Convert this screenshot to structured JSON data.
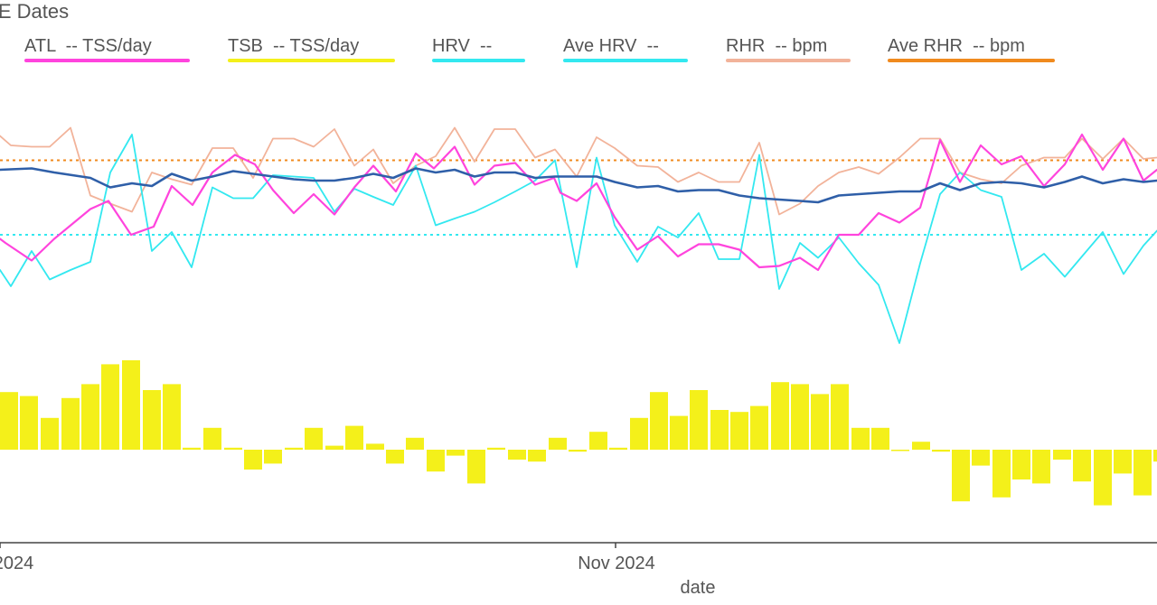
{
  "chart_data": {
    "type": "line",
    "title": "HE Dates",
    "xlabel": "date",
    "x_tick_labels": [
      "2024",
      "Nov 2024"
    ],
    "legend": [
      {
        "key": "atl",
        "label": "ATL  -- TSS/day",
        "color": "#ff44dd"
      },
      {
        "key": "tsb",
        "label": "TSB  -- TSS/day",
        "color": "#f4f01a"
      },
      {
        "key": "hrv",
        "label": "HRV  --",
        "color": "#33e8f0"
      },
      {
        "key": "ave_hrv",
        "label": "Ave HRV  --",
        "color": "#33e8f0"
      },
      {
        "key": "rhr",
        "label": "RHR  -- bpm",
        "color": "#f2b39a"
      },
      {
        "key": "ave_rhr",
        "label": "Ave RHR  -- bpm",
        "color": "#f08a1e"
      }
    ],
    "colors": {
      "atl": "#ff44dd",
      "tsb": "#f4f01a",
      "hrv": "#33e8f0",
      "ave_hrv": "#33e8f0",
      "rhr": "#f2b39a",
      "ave_rhr": "#f08a1e",
      "trend": "#2f5fa8",
      "axis": "#444444"
    },
    "line_series": {
      "atl": [
        [
          0,
          37
        ],
        [
          6,
          34
        ],
        [
          35,
          21
        ],
        [
          60,
          37
        ],
        [
          100,
          59
        ],
        [
          120,
          65
        ],
        [
          145,
          40
        ],
        [
          170,
          46
        ],
        [
          190,
          76
        ],
        [
          213,
          62
        ],
        [
          235,
          86
        ],
        [
          260,
          99
        ],
        [
          282,
          92
        ],
        [
          302,
          73
        ],
        [
          325,
          56
        ],
        [
          347,
          70
        ],
        [
          370,
          55
        ],
        [
          392,
          75
        ],
        [
          413,
          91
        ],
        [
          438,
          72
        ],
        [
          460,
          100
        ],
        [
          480,
          89
        ],
        [
          503,
          105
        ],
        [
          525,
          77
        ],
        [
          547,
          91
        ],
        [
          570,
          93
        ],
        [
          592,
          77
        ],
        [
          613,
          82
        ],
        [
          620,
          71
        ],
        [
          638,
          65
        ],
        [
          660,
          78
        ],
        [
          680,
          53
        ],
        [
          705,
          29
        ],
        [
          728,
          39
        ],
        [
          750,
          24
        ],
        [
          773,
          33
        ],
        [
          795,
          33
        ],
        [
          818,
          29
        ],
        [
          840,
          16
        ],
        [
          862,
          17
        ],
        [
          885,
          23
        ],
        [
          905,
          14
        ],
        [
          928,
          40
        ],
        [
          950,
          40
        ],
        [
          972,
          56
        ],
        [
          995,
          49
        ],
        [
          1018,
          60
        ],
        [
          1040,
          110
        ],
        [
          1062,
          79
        ],
        [
          1085,
          106
        ],
        [
          1108,
          92
        ],
        [
          1130,
          98
        ],
        [
          1155,
          76
        ],
        [
          1178,
          92
        ],
        [
          1197,
          114
        ],
        [
          1220,
          88
        ],
        [
          1243,
          111
        ],
        [
          1265,
          80
        ],
        [
          1280,
          88
        ]
      ],
      "hrv": [
        [
          0,
          14
        ],
        [
          12,
          2
        ],
        [
          35,
          28
        ],
        [
          55,
          7
        ],
        [
          78,
          14
        ],
        [
          100,
          20
        ],
        [
          122,
          86
        ],
        [
          146,
          114
        ],
        [
          168,
          28
        ],
        [
          190,
          42
        ],
        [
          212,
          16
        ],
        [
          235,
          75
        ],
        [
          258,
          67
        ],
        [
          280,
          67
        ],
        [
          302,
          84
        ],
        [
          325,
          83
        ],
        [
          347,
          82
        ],
        [
          370,
          57
        ],
        [
          392,
          74
        ],
        [
          413,
          68
        ],
        [
          435,
          62
        ],
        [
          460,
          91
        ],
        [
          482,
          47
        ],
        [
          503,
          52
        ],
        [
          525,
          57
        ],
        [
          547,
          64
        ],
        [
          570,
          72
        ],
        [
          592,
          80
        ],
        [
          614,
          95
        ],
        [
          638,
          16
        ],
        [
          660,
          97
        ],
        [
          680,
          47
        ],
        [
          705,
          20
        ],
        [
          728,
          46
        ],
        [
          750,
          38
        ],
        [
          773,
          56
        ],
        [
          795,
          22
        ],
        [
          818,
          22
        ],
        [
          840,
          99
        ],
        [
          862,
          0
        ],
        [
          885,
          34
        ],
        [
          905,
          23
        ],
        [
          928,
          38
        ],
        [
          950,
          19
        ],
        [
          972,
          3
        ],
        [
          995,
          -40
        ],
        [
          1018,
          19
        ],
        [
          1040,
          70
        ],
        [
          1062,
          86
        ],
        [
          1085,
          73
        ],
        [
          1108,
          68
        ],
        [
          1130,
          14
        ],
        [
          1155,
          26
        ],
        [
          1178,
          9
        ],
        [
          1197,
          24
        ],
        [
          1220,
          42
        ],
        [
          1243,
          11
        ],
        [
          1265,
          32
        ],
        [
          1280,
          43
        ]
      ],
      "rhr": [
        [
          0,
          113
        ],
        [
          12,
          106
        ],
        [
          35,
          105
        ],
        [
          55,
          105
        ],
        [
          78,
          119
        ],
        [
          100,
          69
        ],
        [
          122,
          63
        ],
        [
          146,
          57
        ],
        [
          168,
          86
        ],
        [
          190,
          81
        ],
        [
          212,
          77
        ],
        [
          235,
          104
        ],
        [
          258,
          104
        ],
        [
          280,
          82
        ],
        [
          302,
          111
        ],
        [
          325,
          111
        ],
        [
          347,
          105
        ],
        [
          370,
          118
        ],
        [
          392,
          91
        ],
        [
          413,
          103
        ],
        [
          435,
          78
        ],
        [
          460,
          91
        ],
        [
          482,
          98
        ],
        [
          503,
          119
        ],
        [
          525,
          94
        ],
        [
          547,
          118
        ],
        [
          570,
          118
        ],
        [
          592,
          97
        ],
        [
          614,
          103
        ],
        [
          638,
          83
        ],
        [
          660,
          112
        ],
        [
          680,
          104
        ],
        [
          705,
          91
        ],
        [
          728,
          90
        ],
        [
          750,
          79
        ],
        [
          773,
          86
        ],
        [
          795,
          79
        ],
        [
          818,
          79
        ],
        [
          840,
          108
        ],
        [
          862,
          55
        ],
        [
          885,
          63
        ],
        [
          905,
          76
        ],
        [
          928,
          86
        ],
        [
          950,
          90
        ],
        [
          972,
          85
        ],
        [
          995,
          97
        ],
        [
          1018,
          111
        ],
        [
          1040,
          111
        ],
        [
          1062,
          86
        ],
        [
          1085,
          81
        ],
        [
          1108,
          78
        ],
        [
          1130,
          91
        ],
        [
          1155,
          97
        ],
        [
          1178,
          97
        ],
        [
          1197,
          111
        ],
        [
          1220,
          96
        ],
        [
          1243,
          111
        ],
        [
          1265,
          96
        ],
        [
          1280,
          97
        ]
      ],
      "trend": [
        [
          0,
          88
        ],
        [
          35,
          89
        ],
        [
          60,
          86
        ],
        [
          100,
          82
        ],
        [
          122,
          75
        ],
        [
          146,
          78
        ],
        [
          168,
          76
        ],
        [
          190,
          85
        ],
        [
          212,
          80
        ],
        [
          235,
          83
        ],
        [
          258,
          87
        ],
        [
          280,
          85
        ],
        [
          302,
          83
        ],
        [
          325,
          81
        ],
        [
          347,
          80
        ],
        [
          370,
          80
        ],
        [
          392,
          82
        ],
        [
          413,
          85
        ],
        [
          435,
          82
        ],
        [
          460,
          89
        ],
        [
          482,
          86
        ],
        [
          503,
          88
        ],
        [
          525,
          83
        ],
        [
          547,
          86
        ],
        [
          570,
          86
        ],
        [
          592,
          82
        ],
        [
          614,
          83
        ],
        [
          638,
          83
        ],
        [
          660,
          83
        ],
        [
          680,
          79
        ],
        [
          705,
          75
        ],
        [
          728,
          76
        ],
        [
          750,
          72
        ],
        [
          773,
          73
        ],
        [
          795,
          73
        ],
        [
          818,
          69
        ],
        [
          840,
          67
        ],
        [
          862,
          66
        ],
        [
          885,
          65
        ],
        [
          905,
          64
        ],
        [
          928,
          69
        ],
        [
          950,
          70
        ],
        [
          972,
          71
        ],
        [
          995,
          72
        ],
        [
          1018,
          72
        ],
        [
          1040,
          78
        ],
        [
          1062,
          73
        ],
        [
          1085,
          78
        ],
        [
          1108,
          79
        ],
        [
          1130,
          78
        ],
        [
          1155,
          75
        ],
        [
          1178,
          79
        ],
        [
          1197,
          83
        ],
        [
          1220,
          78
        ],
        [
          1243,
          81
        ],
        [
          1265,
          79
        ],
        [
          1280,
          80
        ]
      ]
    },
    "reference_lines": {
      "ave_rhr": 95,
      "ave_hrv": 40
    },
    "tsb_bars": [
      [
        0,
        29
      ],
      [
        22,
        27
      ],
      [
        45,
        16
      ],
      [
        68,
        26
      ],
      [
        90,
        33
      ],
      [
        112,
        43
      ],
      [
        135,
        45
      ],
      [
        158,
        30
      ],
      [
        180,
        33
      ],
      [
        202,
        1
      ],
      [
        225,
        11
      ],
      [
        248,
        1
      ],
      [
        270,
        -10
      ],
      [
        292,
        -7
      ],
      [
        315,
        1
      ],
      [
        337,
        11
      ],
      [
        360,
        2
      ],
      [
        382,
        12
      ],
      [
        405,
        3
      ],
      [
        427,
        -7
      ],
      [
        449,
        6
      ],
      [
        472,
        -11
      ],
      [
        494,
        -3
      ],
      [
        517,
        -17
      ],
      [
        539,
        1
      ],
      [
        562,
        -5
      ],
      [
        584,
        -6
      ],
      [
        607,
        6
      ],
      [
        629,
        -1
      ],
      [
        652,
        9
      ],
      [
        674,
        1
      ],
      [
        697,
        16
      ],
      [
        719,
        29
      ],
      [
        741,
        17
      ],
      [
        763,
        30
      ],
      [
        786,
        20
      ],
      [
        808,
        19
      ],
      [
        830,
        22
      ],
      [
        853,
        34
      ],
      [
        875,
        33
      ],
      [
        897,
        28
      ],
      [
        919,
        33
      ],
      [
        942,
        11
      ],
      [
        964,
        11
      ],
      [
        986,
        0
      ],
      [
        1009,
        4
      ],
      [
        1031,
        -1
      ],
      [
        1053,
        -26
      ],
      [
        1075,
        -8
      ],
      [
        1098,
        -24
      ],
      [
        1120,
        -15
      ],
      [
        1142,
        -17
      ],
      [
        1165,
        -5
      ],
      [
        1187,
        -16
      ],
      [
        1210,
        -28
      ],
      [
        1232,
        -12
      ],
      [
        1254,
        -23
      ],
      [
        1276,
        -6
      ]
    ]
  }
}
